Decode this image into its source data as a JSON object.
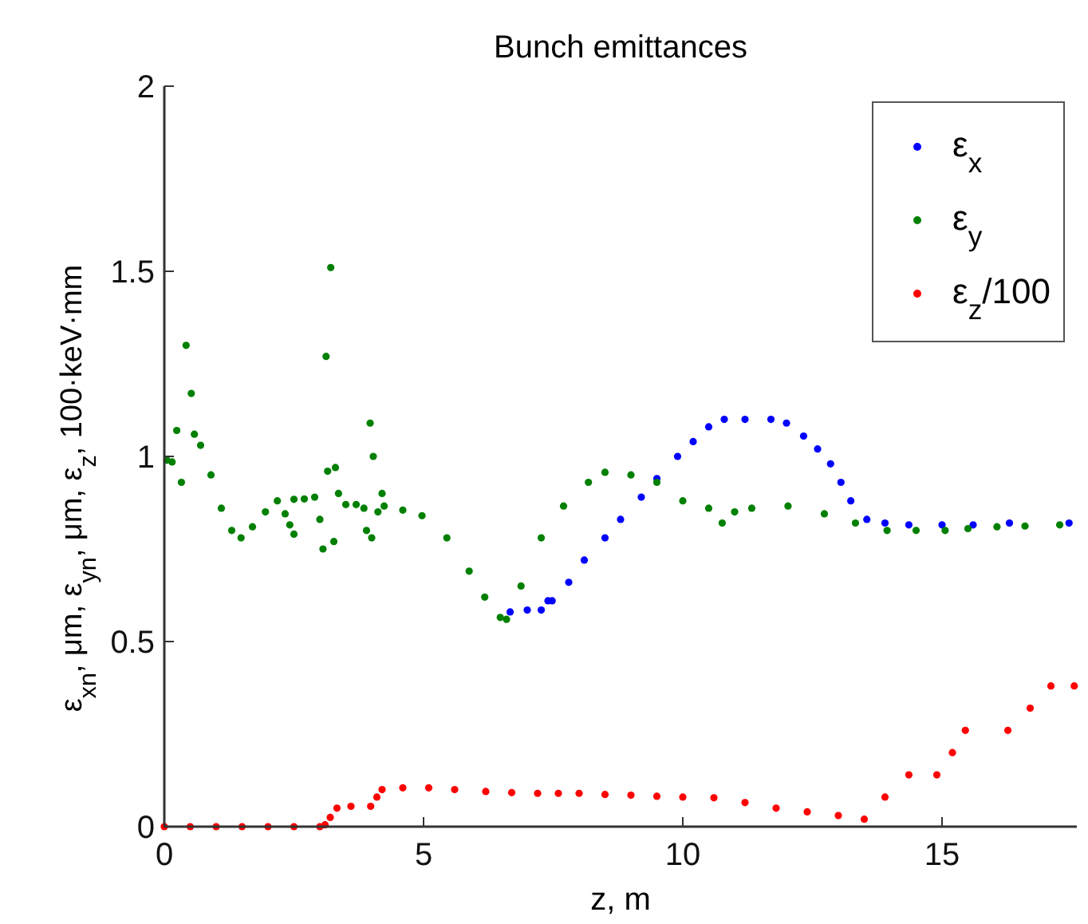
{
  "chart_data": {
    "type": "scatter",
    "title": "Bunch emittances",
    "xlabel": "z, m",
    "ylabel": "ε$_{xn}$, μm, ε$_{yn}$, μm, ε$_{z}$, 100·keV·mm",
    "xlim": [
      0,
      17.6
    ],
    "ylim": [
      0,
      2
    ],
    "xticks": [
      0,
      5,
      10,
      15
    ],
    "yticks": [
      0,
      0.5,
      1,
      1.5,
      2
    ],
    "legend": "top right",
    "marker": "circle",
    "grid": false,
    "series": [
      {
        "name": "ε$_{x}$",
        "color": "#0000ff",
        "x": [
          6.67,
          7.0,
          7.27,
          7.4,
          7.48,
          7.8,
          8.1,
          8.5,
          8.8,
          9.2,
          9.5,
          9.9,
          10.2,
          10.5,
          10.8,
          11.2,
          11.7,
          12.0,
          12.33,
          12.6,
          12.85,
          13.05,
          13.24,
          13.55,
          13.9,
          14.36,
          15,
          15.6,
          16.3,
          17.45
        ],
        "values": [
          0.58,
          0.585,
          0.585,
          0.61,
          0.61,
          0.66,
          0.72,
          0.78,
          0.83,
          0.89,
          0.94,
          1.0,
          1.04,
          1.08,
          1.1,
          1.1,
          1.1,
          1.09,
          1.055,
          1.02,
          0.98,
          0.93,
          0.88,
          0.83,
          0.82,
          0.815,
          0.815,
          0.815,
          0.82,
          0.82
        ]
      },
      {
        "name": "ε$_{y}$",
        "color": "#008000",
        "x": [
          0.05,
          0.15,
          0.24,
          0.33,
          0.42,
          0.52,
          0.58,
          0.7,
          0.9,
          1.1,
          1.3,
          1.48,
          1.7,
          1.95,
          2.18,
          2.33,
          2.42,
          2.5,
          2.5,
          2.7,
          2.9,
          3.0,
          3.06,
          3.12,
          3.15,
          3.21,
          3.27,
          3.3,
          3.36,
          3.5,
          3.7,
          3.85,
          3.9,
          3.97,
          4.0,
          4.03,
          4.12,
          4.2,
          4.24,
          4.6,
          4.97,
          5.45,
          5.88,
          6.18,
          6.48,
          6.6,
          6.88,
          7.27,
          7.7,
          8.18,
          8.5,
          9.0,
          9.5,
          10.0,
          10.5,
          10.76,
          11.0,
          11.33,
          12.03,
          12.73,
          13.33,
          13.94,
          14.5,
          15.06,
          15.5,
          16.06,
          16.6,
          17.27
        ],
        "values": [
          0.99,
          0.985,
          1.07,
          0.93,
          1.3,
          1.17,
          1.06,
          1.03,
          0.95,
          0.86,
          0.8,
          0.78,
          0.81,
          0.85,
          0.88,
          0.845,
          0.815,
          0.79,
          0.884,
          0.885,
          0.89,
          0.83,
          0.75,
          1.27,
          0.96,
          1.51,
          0.77,
          0.97,
          0.9,
          0.87,
          0.87,
          0.86,
          0.8,
          1.09,
          0.78,
          1.0,
          0.85,
          0.9,
          0.866,
          0.855,
          0.84,
          0.78,
          0.69,
          0.62,
          0.565,
          0.56,
          0.65,
          0.78,
          0.866,
          0.93,
          0.957,
          0.95,
          0.93,
          0.88,
          0.86,
          0.82,
          0.85,
          0.86,
          0.866,
          0.845,
          0.82,
          0.8,
          0.8,
          0.8,
          0.805,
          0.81,
          0.812,
          0.815
        ]
      },
      {
        "name": "ε$_{z}$/100",
        "color": "#ff0000",
        "x": [
          0,
          0.5,
          1,
          1.5,
          2,
          2.5,
          3.0,
          3.1,
          3.2,
          3.33,
          3.6,
          3.98,
          4.1,
          4.2,
          4.6,
          5.1,
          5.6,
          6.2,
          6.7,
          7.2,
          7.6,
          8.0,
          8.5,
          9.0,
          9.5,
          10.0,
          10.6,
          11.2,
          11.8,
          12.4,
          13.0,
          13.5,
          13.9,
          14.36,
          14.9,
          15.2,
          15.45,
          16.27,
          16.7,
          17.1,
          17.55
        ],
        "values": [
          0,
          0,
          0,
          0,
          0,
          0,
          0,
          0.005,
          0.025,
          0.05,
          0.055,
          0.055,
          0.08,
          0.1,
          0.105,
          0.105,
          0.1,
          0.095,
          0.092,
          0.09,
          0.09,
          0.09,
          0.087,
          0.085,
          0.082,
          0.08,
          0.078,
          0.065,
          0.05,
          0.04,
          0.03,
          0.02,
          0.08,
          0.14,
          0.14,
          0.2,
          0.26,
          0.26,
          0.32,
          0.38,
          0.38
        ]
      }
    ]
  }
}
